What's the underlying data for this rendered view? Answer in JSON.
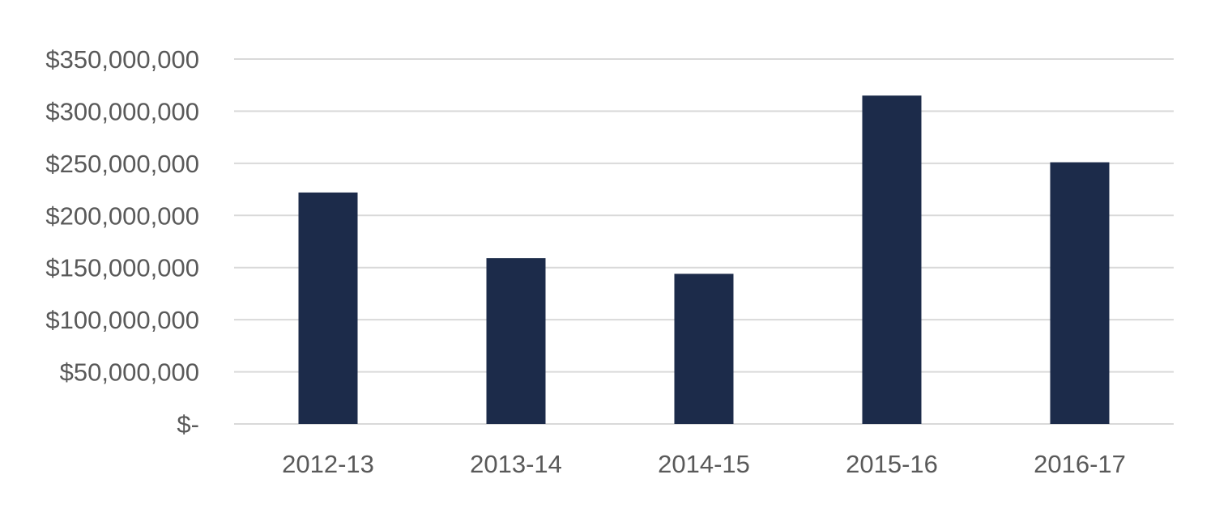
{
  "chart_data": {
    "type": "bar",
    "title": "",
    "xlabel": "",
    "ylabel": "",
    "categories": [
      "2012-13",
      "2013-14",
      "2014-15",
      "2015-16",
      "2016-17"
    ],
    "values": [
      222000000,
      159000000,
      144000000,
      315000000,
      251000000
    ],
    "ylim": [
      0,
      350000000
    ],
    "yticks": [
      0,
      50000000,
      100000000,
      150000000,
      200000000,
      250000000,
      300000000,
      350000000
    ],
    "ytick_labels": [
      "$-",
      "$50,000,000",
      "$100,000,000",
      "$150,000,000",
      "$200,000,000",
      "$250,000,000",
      "$300,000,000",
      "$350,000,000"
    ],
    "grid": true,
    "legend": "none",
    "colors": {
      "bar": "#1c2b4a",
      "grid": "#d9d9d9",
      "text": "#595959"
    }
  }
}
